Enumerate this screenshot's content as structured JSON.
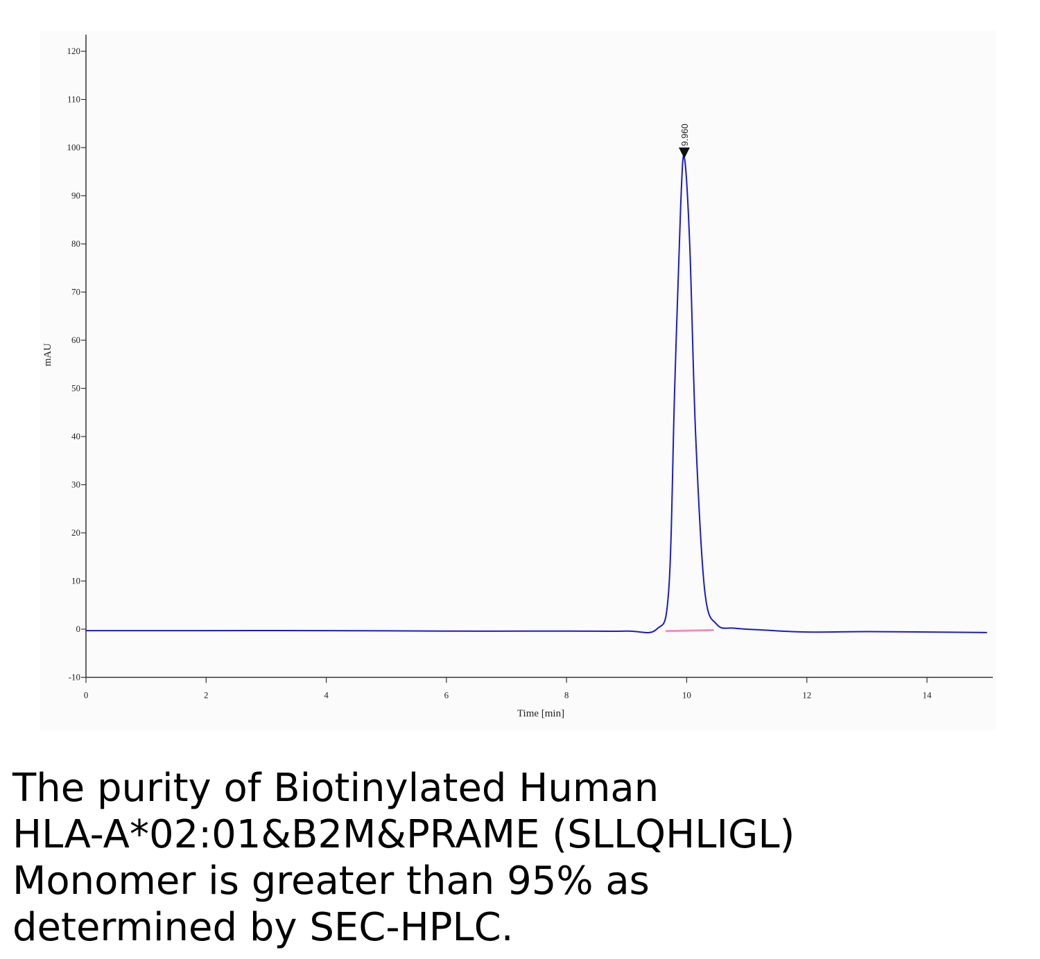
{
  "chart_data": {
    "type": "line",
    "xlabel": "Time [min]",
    "ylabel": "mAU",
    "xlim": [
      0,
      15
    ],
    "ylim": [
      -10,
      123
    ],
    "xticks": [
      0,
      2,
      4,
      6,
      8,
      10,
      12,
      14
    ],
    "yticks": [
      -10,
      0,
      10,
      20,
      30,
      40,
      50,
      60,
      70,
      80,
      90,
      100,
      110,
      120
    ],
    "grid": false,
    "series": [
      {
        "color": "#1a1acc",
        "x": [
          0,
          2,
          4,
          6,
          8,
          9.0,
          9.5,
          9.7,
          9.8,
          9.9,
          9.96,
          10.05,
          10.15,
          10.3,
          10.5,
          10.8,
          11.3,
          12,
          13,
          14,
          15
        ],
        "y": [
          -0.3,
          -0.3,
          -0.3,
          -0.4,
          -0.4,
          -0.4,
          0.0,
          8,
          50,
          88,
          98,
          80,
          40,
          8,
          1.0,
          0.2,
          -0.2,
          -0.6,
          -0.5,
          -0.6,
          -0.7
        ]
      }
    ],
    "baseline": {
      "color": "#f08fc0",
      "x": [
        9.65,
        10.45
      ],
      "y": [
        -0.4,
        -0.2
      ]
    },
    "peaks": [
      {
        "label": "9.960",
        "x": 9.96,
        "y": 98
      }
    ]
  },
  "caption": {
    "lines": [
      "The purity of Biotinylated Human",
      "HLA-A*02:01&B2M&PRAME (SLLQHLIGL)",
      "Monomer is greater than 95% as",
      "determined by SEC-HPLC."
    ]
  }
}
